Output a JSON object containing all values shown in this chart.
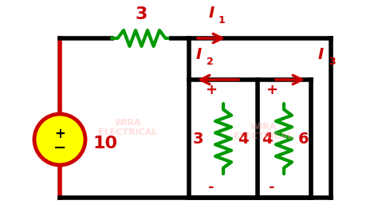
{
  "bg_color": "#ffffff",
  "wire_color": "#000000",
  "red_color": "#cc0000",
  "green_color": "#009900",
  "yellow_color": "#ffff00",
  "fig_width": 4.74,
  "fig_height": 2.81,
  "dpi": 100,
  "lw_main": 3.0,
  "labels": {
    "resistor_series": "3",
    "I1": "I",
    "I1_sub": "1",
    "I2": "I",
    "I2_sub": "2",
    "I3": "I",
    "I3_sub": "3",
    "battery_val": "10",
    "r1_left": "3",
    "r1_right": "4",
    "r2_left": "4",
    "r2_right": "6",
    "plus1": "+",
    "plus2": "+",
    "minus1": "-",
    "minus2": "-"
  }
}
